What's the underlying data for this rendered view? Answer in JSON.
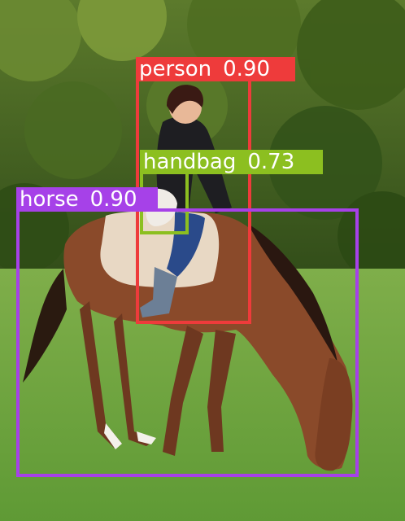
{
  "scene": {
    "kind": "photo",
    "subject": "woman riding a grazing brown horse on a meadow in front of trees"
  },
  "detections": [
    {
      "label": "person",
      "score": "0.90",
      "color": "#ee3b3b"
    },
    {
      "label": "handbag",
      "score": "0.73",
      "color": "#8cbf20"
    },
    {
      "label": "horse",
      "score": "0.90",
      "color": "#a641e8"
    }
  ]
}
